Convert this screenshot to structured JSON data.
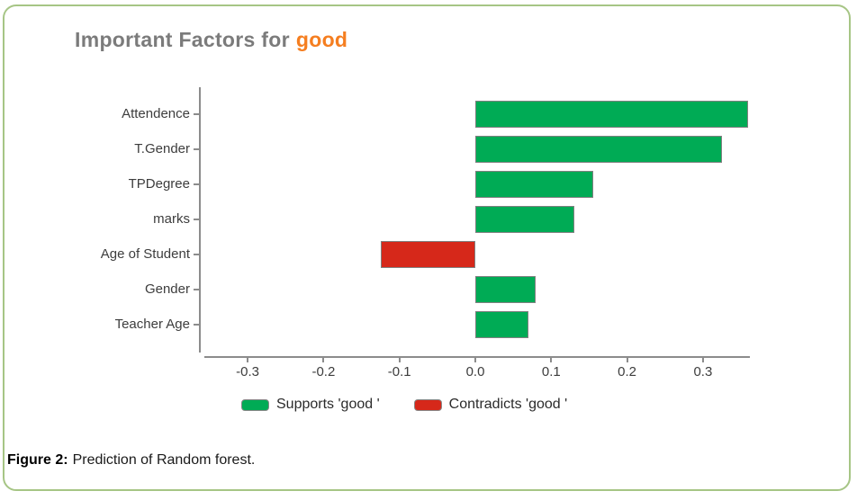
{
  "figure": {
    "title_prefix": "Important Factors for",
    "title_highlight": "good",
    "caption_label": "Figure 2:",
    "caption_text": "Prediction of Random forest."
  },
  "legend": [
    {
      "label": "Supports 'good '",
      "swatch_color": "#00ab55"
    },
    {
      "label": "Contradicts 'good '",
      "swatch_color": "#d6281a"
    }
  ],
  "colors": {
    "panel_border": "#a6c585",
    "title_gray": "#7b7b7b",
    "title_orange": "#f57e20",
    "bar_positive": "#00ab55",
    "bar_negative": "#d6281a",
    "bar_border": "#808080",
    "axis_gray": "#8c8c8c",
    "tick_text": "#3d3d3d"
  },
  "chart_data": {
    "type": "bar",
    "orientation": "horizontal",
    "title": "Important Factors for good",
    "categories": [
      "Attendence",
      "T.Gender",
      "TPDegree",
      "marks",
      "Age of Student",
      "Gender",
      "Teacher Age"
    ],
    "values": [
      0.36,
      0.325,
      0.155,
      0.13,
      -0.125,
      0.08,
      0.07
    ],
    "positive_color": "#00ab55",
    "negative_color": "#d6281a",
    "x_ticks": [
      -0.3,
      -0.2,
      -0.1,
      0.0,
      0.1,
      0.2,
      0.3
    ],
    "x_tick_labels": [
      "-0.3",
      "-0.2",
      "-0.1",
      "0.0",
      "0.1",
      "0.2",
      "0.3"
    ],
    "xlim": [
      -0.365,
      0.362
    ],
    "grid": false,
    "legend_position": "bottom",
    "legend_entries": [
      "Supports 'good '",
      "Contradicts 'good '"
    ]
  }
}
